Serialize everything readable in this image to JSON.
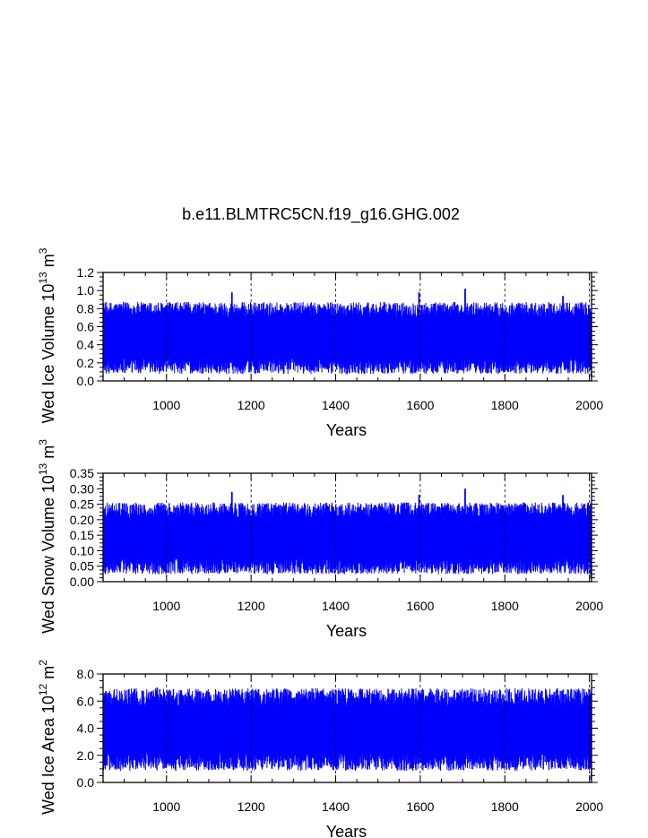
{
  "title": "b.e11.BLMTRC5CN.f19_g16.GHG.002",
  "chart_data": [
    {
      "type": "line",
      "ylabel_main": "Wed Ice Volume 10",
      "ylabel_exp": "13",
      "ylabel_unit": " m",
      "ylabel_unit_exp": "3",
      "xlabel": "Years",
      "xlim": [
        850,
        2005
      ],
      "ylim": [
        0.0,
        1.2
      ],
      "xticks": [
        1000,
        1200,
        1400,
        1600,
        1800,
        2000
      ],
      "xtick_labels": [
        "1000",
        "1200",
        "1400",
        "1600",
        "1800",
        "2000"
      ],
      "yticks": [
        0.0,
        0.2,
        0.4,
        0.6,
        0.8,
        1.0,
        1.2
      ],
      "ytick_labels": [
        "0.0",
        "0.2",
        "0.4",
        "0.6",
        "0.8",
        "1.0",
        "1.2"
      ],
      "grid": "vertical dashed at x ticks",
      "series": [
        {
          "color": "#0000ff",
          "x_start": 850,
          "x_end": 2005,
          "seasonal_min": 0.2,
          "seasonal_max": 0.75,
          "overall_min": 0.05,
          "overall_max": 1.02,
          "peaks": [
            [
              1155,
              0.98
            ],
            [
              1597,
              0.98
            ],
            [
              1706,
              1.02
            ],
            [
              1937,
              0.94
            ]
          ]
        }
      ]
    },
    {
      "type": "line",
      "ylabel_main": "Wed Snow Volume 10",
      "ylabel_exp": "13",
      "ylabel_unit": " m",
      "ylabel_unit_exp": "3",
      "xlabel": "Years",
      "xlim": [
        850,
        2005
      ],
      "ylim": [
        0.0,
        0.35
      ],
      "xticks": [
        1000,
        1200,
        1400,
        1600,
        1800,
        2000
      ],
      "xtick_labels": [
        "1000",
        "1200",
        "1400",
        "1600",
        "1800",
        "2000"
      ],
      "yticks": [
        0.0,
        0.05,
        0.1,
        0.15,
        0.2,
        0.25,
        0.3,
        0.35
      ],
      "ytick_labels": [
        "0.00",
        "0.05",
        "0.10",
        "0.15",
        "0.20",
        "0.25",
        "0.30",
        "0.35"
      ],
      "grid": "vertical dashed at x ticks",
      "series": [
        {
          "color": "#0000ff",
          "x_start": 850,
          "x_end": 2005,
          "seasonal_min": 0.06,
          "seasonal_max": 0.22,
          "overall_min": 0.01,
          "overall_max": 0.3,
          "peaks": [
            [
              1155,
              0.29
            ],
            [
              1597,
              0.28
            ],
            [
              1706,
              0.3
            ],
            [
              1937,
              0.28
            ]
          ]
        }
      ]
    },
    {
      "type": "line",
      "ylabel_main": "Wed Ice Area 10",
      "ylabel_exp": "12",
      "ylabel_unit": " m",
      "ylabel_unit_exp": "2",
      "xlabel": "Years",
      "xlim": [
        850,
        2005
      ],
      "ylim": [
        0.0,
        8.0
      ],
      "xticks": [
        1000,
        1200,
        1400,
        1600,
        1800,
        2000
      ],
      "xtick_labels": [
        "1000",
        "1200",
        "1400",
        "1600",
        "1800",
        "2000"
      ],
      "yticks": [
        0.0,
        2.0,
        4.0,
        6.0,
        8.0
      ],
      "ytick_labels": [
        "0.0",
        "2.0",
        "4.0",
        "6.0",
        "8.0"
      ],
      "grid": "vertical dashed at x ticks",
      "series": [
        {
          "color": "#0000ff",
          "x_start": 850,
          "x_end": 2005,
          "seasonal_min": 1.8,
          "seasonal_max": 6.0,
          "overall_min": 0.2,
          "overall_max": 7.0,
          "peaks": [
            [
              978,
              7.0
            ],
            [
              1430,
              6.9
            ],
            [
              1600,
              6.6
            ],
            [
              1706,
              6.7
            ]
          ]
        }
      ]
    }
  ]
}
